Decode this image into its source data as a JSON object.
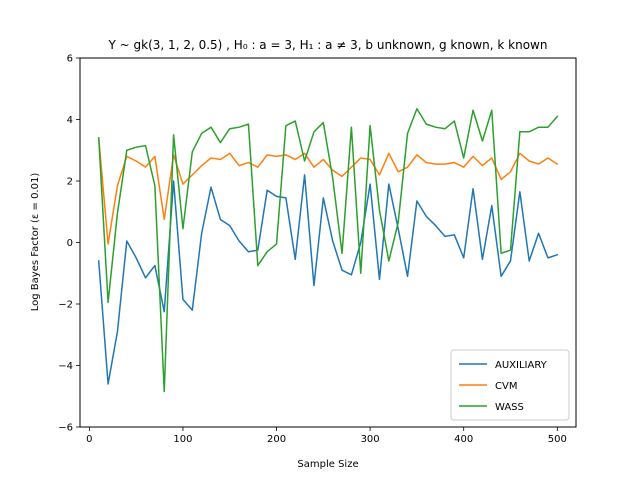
{
  "chart_data": {
    "type": "line",
    "title": "Y ~ gk(3, 1, 2, 0.5) , H₀ : a = 3, H₁ : a ≠ 3,  b unknown, g known, k known",
    "xlabel": "Sample Size",
    "ylabel": "Log Bayes Factor (ε = 0.01)",
    "xlim": [
      -10,
      520
    ],
    "ylim": [
      -6,
      6
    ],
    "xticks": [
      0,
      100,
      200,
      300,
      400,
      500
    ],
    "yticks": [
      -6,
      -4,
      -2,
      0,
      2,
      4,
      6
    ],
    "legend_position": "lower right",
    "x": [
      10,
      20,
      30,
      40,
      50,
      60,
      70,
      80,
      90,
      100,
      110,
      120,
      130,
      140,
      150,
      160,
      170,
      180,
      190,
      200,
      210,
      220,
      230,
      240,
      250,
      260,
      270,
      280,
      290,
      300,
      310,
      320,
      330,
      340,
      350,
      360,
      370,
      380,
      390,
      400,
      410,
      420,
      430,
      440,
      450,
      460,
      470,
      480,
      490,
      500
    ],
    "series": [
      {
        "name": "AUXILIARY",
        "color": "#1f77b4",
        "values": [
          -0.6,
          -4.6,
          -2.9,
          0.05,
          -0.5,
          -1.15,
          -0.75,
          -2.25,
          2.0,
          -1.85,
          -2.2,
          0.3,
          1.8,
          0.75,
          0.55,
          0.05,
          -0.3,
          -0.25,
          1.7,
          1.5,
          1.45,
          -0.55,
          2.2,
          -1.4,
          1.45,
          0.05,
          -0.9,
          -1.05,
          0.0,
          1.9,
          -1.2,
          1.9,
          0.45,
          -1.1,
          1.35,
          0.85,
          0.55,
          0.2,
          0.25,
          -0.5,
          1.75,
          -0.55,
          1.2,
          -1.1,
          -0.6,
          1.65,
          -0.6,
          0.3,
          -0.5,
          -0.4
        ]
      },
      {
        "name": "CVM",
        "color": "#ff7f0e",
        "values": [
          3.4,
          -0.05,
          1.85,
          2.8,
          2.65,
          2.45,
          2.8,
          0.75,
          2.85,
          1.9,
          2.2,
          2.5,
          2.75,
          2.7,
          2.9,
          2.5,
          2.6,
          2.45,
          2.85,
          2.8,
          2.85,
          2.7,
          2.9,
          2.45,
          2.7,
          2.35,
          2.15,
          2.45,
          2.75,
          2.7,
          2.2,
          2.9,
          2.3,
          2.45,
          2.85,
          2.6,
          2.55,
          2.55,
          2.6,
          2.45,
          2.8,
          2.5,
          2.75,
          2.05,
          2.3,
          2.9,
          2.65,
          2.55,
          2.75,
          2.55
        ]
      },
      {
        "name": "WASS",
        "color": "#2ca02c",
        "values": [
          3.4,
          -1.95,
          0.95,
          3.0,
          3.1,
          3.15,
          1.85,
          -4.85,
          3.5,
          0.45,
          2.95,
          3.55,
          3.75,
          3.25,
          3.7,
          3.75,
          3.85,
          -0.75,
          -0.3,
          -0.05,
          3.8,
          3.95,
          2.65,
          3.6,
          3.9,
          2.1,
          -0.35,
          3.75,
          -1.0,
          3.8,
          1.05,
          -0.6,
          0.65,
          3.55,
          4.35,
          3.85,
          3.75,
          3.7,
          3.95,
          2.75,
          4.3,
          3.3,
          4.3,
          -0.35,
          -0.25,
          3.6,
          3.6,
          3.75,
          3.75,
          4.1
        ]
      }
    ]
  }
}
